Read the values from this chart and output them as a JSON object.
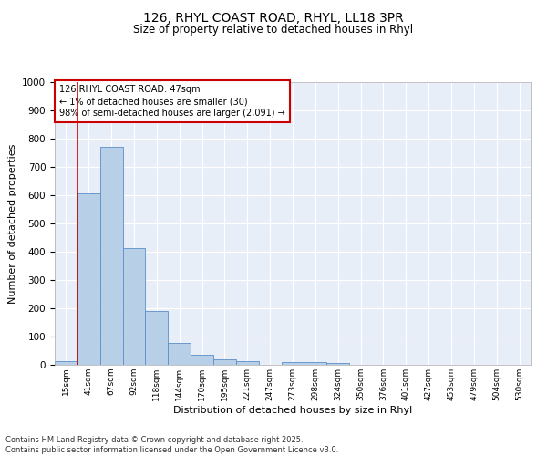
{
  "title_line1": "126, RHYL COAST ROAD, RHYL, LL18 3PR",
  "title_line2": "Size of property relative to detached houses in Rhyl",
  "xlabel": "Distribution of detached houses by size in Rhyl",
  "ylabel": "Number of detached properties",
  "categories": [
    "15sqm",
    "41sqm",
    "67sqm",
    "92sqm",
    "118sqm",
    "144sqm",
    "170sqm",
    "195sqm",
    "221sqm",
    "247sqm",
    "273sqm",
    "298sqm",
    "324sqm",
    "350sqm",
    "376sqm",
    "401sqm",
    "427sqm",
    "453sqm",
    "479sqm",
    "504sqm",
    "530sqm"
  ],
  "values": [
    12,
    608,
    770,
    413,
    191,
    78,
    35,
    18,
    13,
    0,
    11,
    9,
    5,
    0,
    0,
    0,
    0,
    0,
    0,
    0,
    0
  ],
  "bar_color": "#b8cfe8",
  "bar_edge_color": "#5b8fc9",
  "annotation_text": "126 RHYL COAST ROAD: 47sqm\n← 1% of detached houses are smaller (30)\n98% of semi-detached houses are larger (2,091) →",
  "annotation_box_color": "#ffffff",
  "annotation_box_edge_color": "#cc0000",
  "property_line_x": 1.5,
  "property_line_color": "#cc0000",
  "ylim": [
    0,
    1000
  ],
  "yticks": [
    0,
    100,
    200,
    300,
    400,
    500,
    600,
    700,
    800,
    900,
    1000
  ],
  "background_color": "#e8eef8",
  "grid_color": "#ffffff",
  "footer_line1": "Contains HM Land Registry data © Crown copyright and database right 2025.",
  "footer_line2": "Contains public sector information licensed under the Open Government Licence v3.0."
}
